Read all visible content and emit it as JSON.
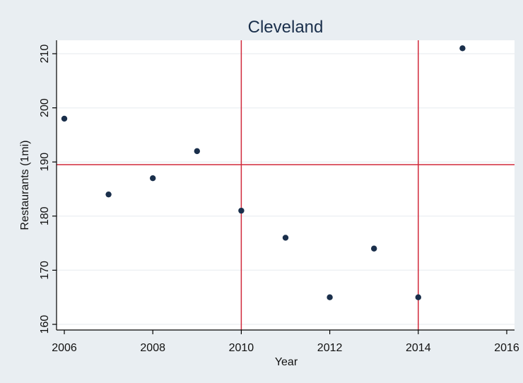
{
  "chart_data": {
    "type": "scatter",
    "title": "Cleveland",
    "xlabel": "Year",
    "ylabel": "Restaurants (1mi)",
    "xlim": [
      2006,
      2016
    ],
    "ylim": [
      160,
      210
    ],
    "xticks": [
      2006,
      2008,
      2010,
      2012,
      2014,
      2016
    ],
    "yticks": [
      160,
      170,
      180,
      190,
      200,
      210
    ],
    "grid": true,
    "series": [
      {
        "x": [
          2006,
          2007,
          2008,
          2009,
          2010,
          2011,
          2012,
          2013,
          2014,
          2015
        ],
        "y": [
          198,
          184,
          187,
          192,
          181,
          176,
          165,
          174,
          165,
          211
        ]
      }
    ],
    "reference_lines": {
      "vertical": [
        2010,
        2014
      ],
      "horizontal": [
        189.5
      ]
    },
    "colors": {
      "background": "#e9eef2",
      "plot_background": "#ffffff",
      "marker": "#1a2f4b",
      "reference_line": "#d0283a",
      "grid": "#eef1f4"
    }
  }
}
